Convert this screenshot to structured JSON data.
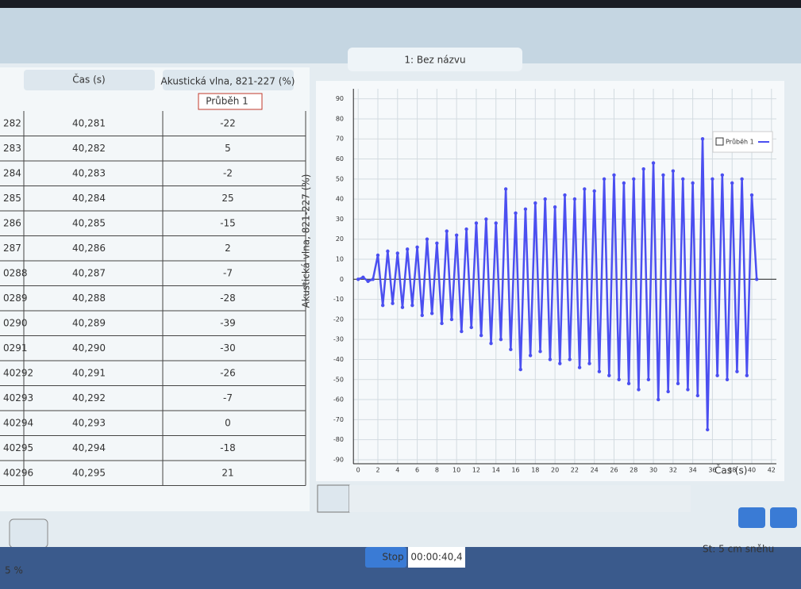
{
  "tab_title": "1: Bez názvu",
  "table": {
    "headers": [
      "Čas (s)",
      "Akustická vlna, 821-227 (%)"
    ],
    "run_label": "Průběh 1",
    "rows": [
      [
        "282",
        "40,281",
        "-22"
      ],
      [
        "283",
        "40,282",
        "5"
      ],
      [
        "284",
        "40,283",
        "-2"
      ],
      [
        "285",
        "40,284",
        "25"
      ],
      [
        "286",
        "40,285",
        "-15"
      ],
      [
        "287",
        "40,286",
        "2"
      ],
      [
        "0288",
        "40,287",
        "-7"
      ],
      [
        "0289",
        "40,288",
        "-28"
      ],
      [
        "0290",
        "40,289",
        "-39"
      ],
      [
        "0291",
        "40,290",
        "-30"
      ],
      [
        "40292",
        "40,291",
        "-26"
      ],
      [
        "40293",
        "40,292",
        "-7"
      ],
      [
        "40294",
        "40,293",
        "0"
      ],
      [
        "40295",
        "40,294",
        "-18"
      ],
      [
        "40296",
        "40,295",
        "21"
      ]
    ]
  },
  "chart_data": {
    "type": "line",
    "y_label": "Akustická vlna, 821-227 (%)",
    "x_label": "Čas (s)",
    "grid": true,
    "legend": "top-right",
    "xlim": [
      -0.5,
      42.5
    ],
    "ylim": [
      -92,
      95
    ],
    "xticks": [
      0,
      2,
      4,
      6,
      8,
      10,
      12,
      14,
      16,
      18,
      20,
      22,
      24,
      26,
      28,
      30,
      32,
      34,
      36,
      38,
      40,
      42
    ],
    "yticks": [
      -90,
      -80,
      -70,
      -60,
      -50,
      -40,
      -30,
      -20,
      -10,
      0,
      10,
      20,
      30,
      40,
      50,
      60,
      70,
      80,
      90
    ],
    "series": [
      {
        "name": "Průběh 1",
        "color": "#4b4ff0",
        "x": [
          0,
          0.5,
          1,
          1.5,
          2,
          2.5,
          3,
          3.5,
          4,
          4.5,
          5,
          5.5,
          6,
          6.5,
          7,
          7.5,
          8,
          8.5,
          9,
          9.5,
          10,
          10.5,
          11,
          11.5,
          12,
          12.5,
          13,
          13.5,
          14,
          14.5,
          15,
          15.5,
          16,
          16.5,
          17,
          17.5,
          18,
          18.5,
          19,
          19.5,
          20,
          20.5,
          21,
          21.5,
          22,
          22.5,
          23,
          23.5,
          24,
          24.5,
          25,
          25.5,
          26,
          26.5,
          27,
          27.5,
          28,
          28.5,
          29,
          29.5,
          30,
          30.5,
          31,
          31.5,
          32,
          32.5,
          33,
          33.5,
          34,
          34.5,
          35,
          35.5,
          36,
          36.5,
          37,
          37.5,
          38,
          38.5,
          39,
          39.5,
          40,
          40.5
        ],
        "values": [
          0,
          1,
          -1,
          0,
          12,
          -13,
          14,
          -12,
          13,
          -14,
          15,
          -13,
          16,
          -18,
          20,
          -17,
          18,
          -22,
          24,
          -20,
          22,
          -26,
          25,
          -24,
          28,
          -28,
          30,
          -32,
          28,
          -30,
          45,
          -35,
          33,
          -45,
          35,
          -38,
          38,
          -36,
          40,
          -40,
          36,
          -42,
          42,
          -40,
          40,
          -44,
          45,
          -42,
          44,
          -46,
          50,
          -48,
          52,
          -50,
          48,
          -52,
          50,
          -55,
          55,
          -50,
          58,
          -60,
          52,
          -56,
          54,
          -52,
          50,
          -55,
          48,
          -58,
          70,
          -75,
          50,
          -48,
          52,
          -50,
          48,
          -46,
          50,
          -48,
          42,
          0
        ]
      }
    ]
  },
  "controls": {
    "stop": "Stop",
    "timer": "00:00:40,4",
    "weather": "St: 5 cm sněhu",
    "zoom": "5 %"
  }
}
